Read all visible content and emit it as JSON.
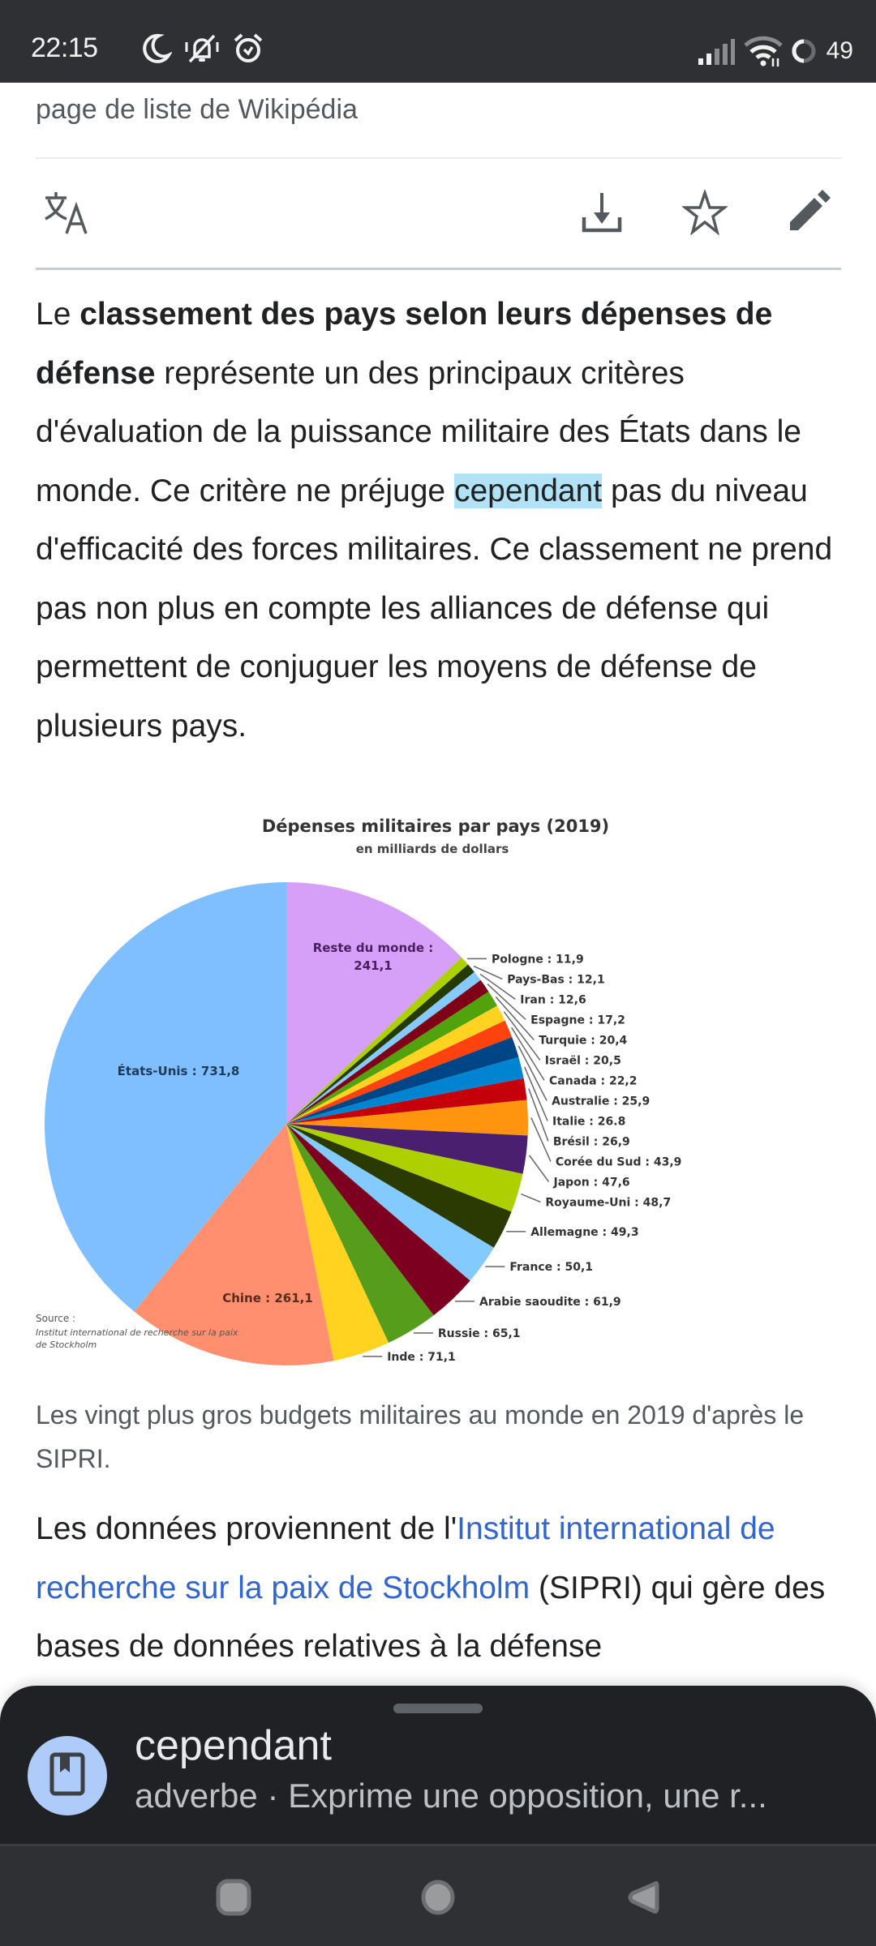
{
  "status_bar": {
    "time": "22:15",
    "left_icons": [
      "moon-icon",
      "bell-off-icon",
      "alarm-icon"
    ],
    "right_icons": [
      "signal-icon",
      "wifi-icon",
      "battery-ring-icon"
    ],
    "battery_level": "49"
  },
  "article": {
    "subtitle": "page de liste de Wikipédia",
    "actions": [
      {
        "name": "translate",
        "icon": "translate-icon"
      },
      {
        "name": "download",
        "icon": "download-icon"
      },
      {
        "name": "bookmark",
        "icon": "star-icon"
      },
      {
        "name": "edit",
        "icon": "pencil-icon"
      }
    ],
    "intro": {
      "p1_start": "Le ",
      "p1_bold": "classement des pays selon leurs dépenses de défense",
      "p1_mid": " représente un des principaux critères d'évaluation de la puissance militaire des États dans le monde. Ce critère ne préjuge ",
      "p1_highlight": "cependant",
      "p1_end": " pas du niveau d'efficacité des forces militaires. Ce classement ne prend pas non plus en compte les alliances de défense qui permettent de conjuguer les moyens de défense de plusieurs pays."
    },
    "figure_caption": "Les vingt plus gros budgets militaires au monde en 2019 d'après le SIPRI.",
    "para2": {
      "start": "Les données proviennent de l'",
      "link": "Institut international de recherche sur la paix de Stockholm",
      "end": " (SIPRI) qui gère des bases de données relatives à la défense"
    }
  },
  "chart_data": {
    "type": "pie",
    "title": "Dépenses militaires par pays (2019)",
    "subtitle": "en milliards de dollars",
    "source_label": "Source :",
    "source_text": "Institut international de recherche sur la paix de Stockholm",
    "start_angle": "12 o'clock, clockwise",
    "slices": [
      {
        "label": "Reste du monde",
        "value_text": "241,1",
        "value": 241.1,
        "color": "#d6a0f8",
        "label_style": "inside"
      },
      {
        "label": "Pologne",
        "value_text": "11,9",
        "value": 11.9,
        "color": "#acd000",
        "label_style": "leader"
      },
      {
        "label": "Pays-Bas",
        "value_text": "12,1",
        "value": 12.1,
        "color": "#253a00",
        "label_style": "leader"
      },
      {
        "label": "Iran",
        "value_text": "12,6",
        "value": 12.6,
        "color": "#86c9ff",
        "label_style": "leader"
      },
      {
        "label": "Espagne",
        "value_text": "17,2",
        "value": 17.2,
        "color": "#7f0016",
        "label_style": "leader"
      },
      {
        "label": "Turquie",
        "value_text": "20,4",
        "value": 20.4,
        "color": "#52a20e",
        "label_style": "leader"
      },
      {
        "label": "Israël",
        "value_text": "20,5",
        "value": 20.5,
        "color": "#ffd320",
        "label_style": "leader"
      },
      {
        "label": "Canada",
        "value_text": "22,2",
        "value": 22.2,
        "color": "#ff420e",
        "label_style": "leader"
      },
      {
        "label": "Australie",
        "value_text": "25,9",
        "value": 25.9,
        "color": "#004586",
        "label_style": "leader"
      },
      {
        "label": "Italie",
        "value_text": "26.8",
        "value": 26.8,
        "color": "#0084d1",
        "label_style": "leader"
      },
      {
        "label": "Brésil",
        "value_text": "26,9",
        "value": 26.9,
        "color": "#c5000b",
        "label_style": "leader"
      },
      {
        "label": "Corée du Sud",
        "value_text": "43,9",
        "value": 43.9,
        "color": "#ff950e",
        "label_style": "leader"
      },
      {
        "label": "Japon",
        "value_text": "47,6",
        "value": 47.6,
        "color": "#4b1f6f",
        "label_style": "leader"
      },
      {
        "label": "Royaume-Uni",
        "value_text": "48,7",
        "value": 48.7,
        "color": "#aecf00",
        "label_style": "leader"
      },
      {
        "label": "Allemagne",
        "value_text": "49,3",
        "value": 49.3,
        "color": "#2a3a00",
        "label_style": "leader"
      },
      {
        "label": "France",
        "value_text": "50,1",
        "value": 50.1,
        "color": "#83caff",
        "label_style": "leader"
      },
      {
        "label": "Arabie saoudite",
        "value_text": "61,9",
        "value": 61.9,
        "color": "#7e0021",
        "label_style": "leader"
      },
      {
        "label": "Russie",
        "value_text": "65,1",
        "value": 65.1,
        "color": "#579d1c",
        "label_style": "leader"
      },
      {
        "label": "Inde",
        "value_text": "71,1",
        "value": 71.1,
        "color": "#ffd320",
        "label_style": "leader"
      },
      {
        "label": "Chine",
        "value_text": "261,1",
        "value": 261.1,
        "color": "#ff8f6e",
        "label_style": "inside"
      },
      {
        "label": "États-Unis",
        "value_text": "731,8",
        "value": 731.8,
        "color": "#7fbfff",
        "label_style": "inside"
      }
    ]
  },
  "lookup_sheet": {
    "icon": "dictionary-icon",
    "word": "cependant",
    "definition": "adverbe · Exprime une opposition, une r..."
  },
  "nav_bar": {
    "buttons": [
      {
        "name": "recents",
        "icon": "square-icon"
      },
      {
        "name": "home",
        "icon": "circle-icon"
      },
      {
        "name": "back",
        "icon": "triangle-back-icon"
      }
    ]
  }
}
